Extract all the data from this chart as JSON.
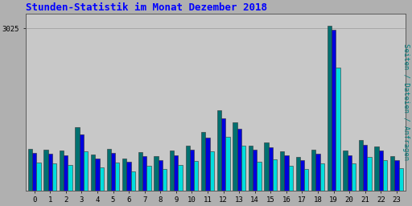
{
  "title": "Stunden-Statistik im Monat Dezember 2018",
  "ylabel": "Seiten / Dateien / Anfragen",
  "hours": [
    0,
    1,
    2,
    3,
    4,
    5,
    6,
    7,
    8,
    9,
    10,
    11,
    12,
    13,
    14,
    15,
    16,
    17,
    18,
    19,
    20,
    21,
    22,
    23
  ],
  "seiten": [
    700,
    680,
    660,
    1050,
    590,
    700,
    530,
    640,
    570,
    660,
    760,
    980,
    1350,
    1150,
    760,
    810,
    650,
    560,
    680,
    3000,
    660,
    850,
    740,
    570
  ],
  "dateien": [
    780,
    760,
    740,
    1180,
    670,
    780,
    600,
    720,
    640,
    740,
    840,
    1090,
    1500,
    1270,
    840,
    900,
    730,
    630,
    760,
    3080,
    740,
    940,
    820,
    640
  ],
  "anfragen": [
    520,
    500,
    470,
    730,
    430,
    520,
    360,
    460,
    400,
    480,
    550,
    730,
    1000,
    840,
    540,
    580,
    460,
    400,
    510,
    2300,
    510,
    620,
    560,
    420
  ],
  "color_seiten": "#0000dd",
  "color_dateien": "#007070",
  "color_anfragen": "#00dddd",
  "background_color": "#b0b0b0",
  "plot_bg_color": "#c8c8c8",
  "title_color": "#0000ff",
  "ylabel_color": "#008080",
  "ylim": [
    0,
    3300
  ],
  "bar_width": 0.27,
  "figsize": [
    5.12,
    2.56
  ],
  "dpi": 100
}
